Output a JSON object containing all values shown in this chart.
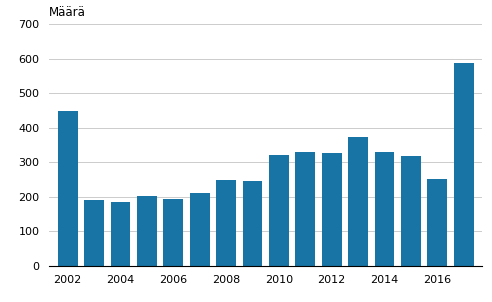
{
  "years": [
    2002,
    2003,
    2004,
    2005,
    2006,
    2007,
    2008,
    2009,
    2010,
    2011,
    2012,
    2013,
    2014,
    2015,
    2016,
    2017
  ],
  "values": [
    447,
    190,
    186,
    201,
    193,
    212,
    248,
    245,
    320,
    331,
    328,
    372,
    331,
    317,
    250,
    588
  ],
  "bar_color": "#1874a4",
  "ylabel": "Määrä",
  "ylim": [
    0,
    700
  ],
  "yticks": [
    0,
    100,
    200,
    300,
    400,
    500,
    600,
    700
  ],
  "xtick_labels": [
    "2002",
    "2004",
    "2006",
    "2008",
    "2010",
    "2012",
    "2014",
    "2016"
  ],
  "background_color": "#ffffff",
  "grid_color": "#cccccc"
}
